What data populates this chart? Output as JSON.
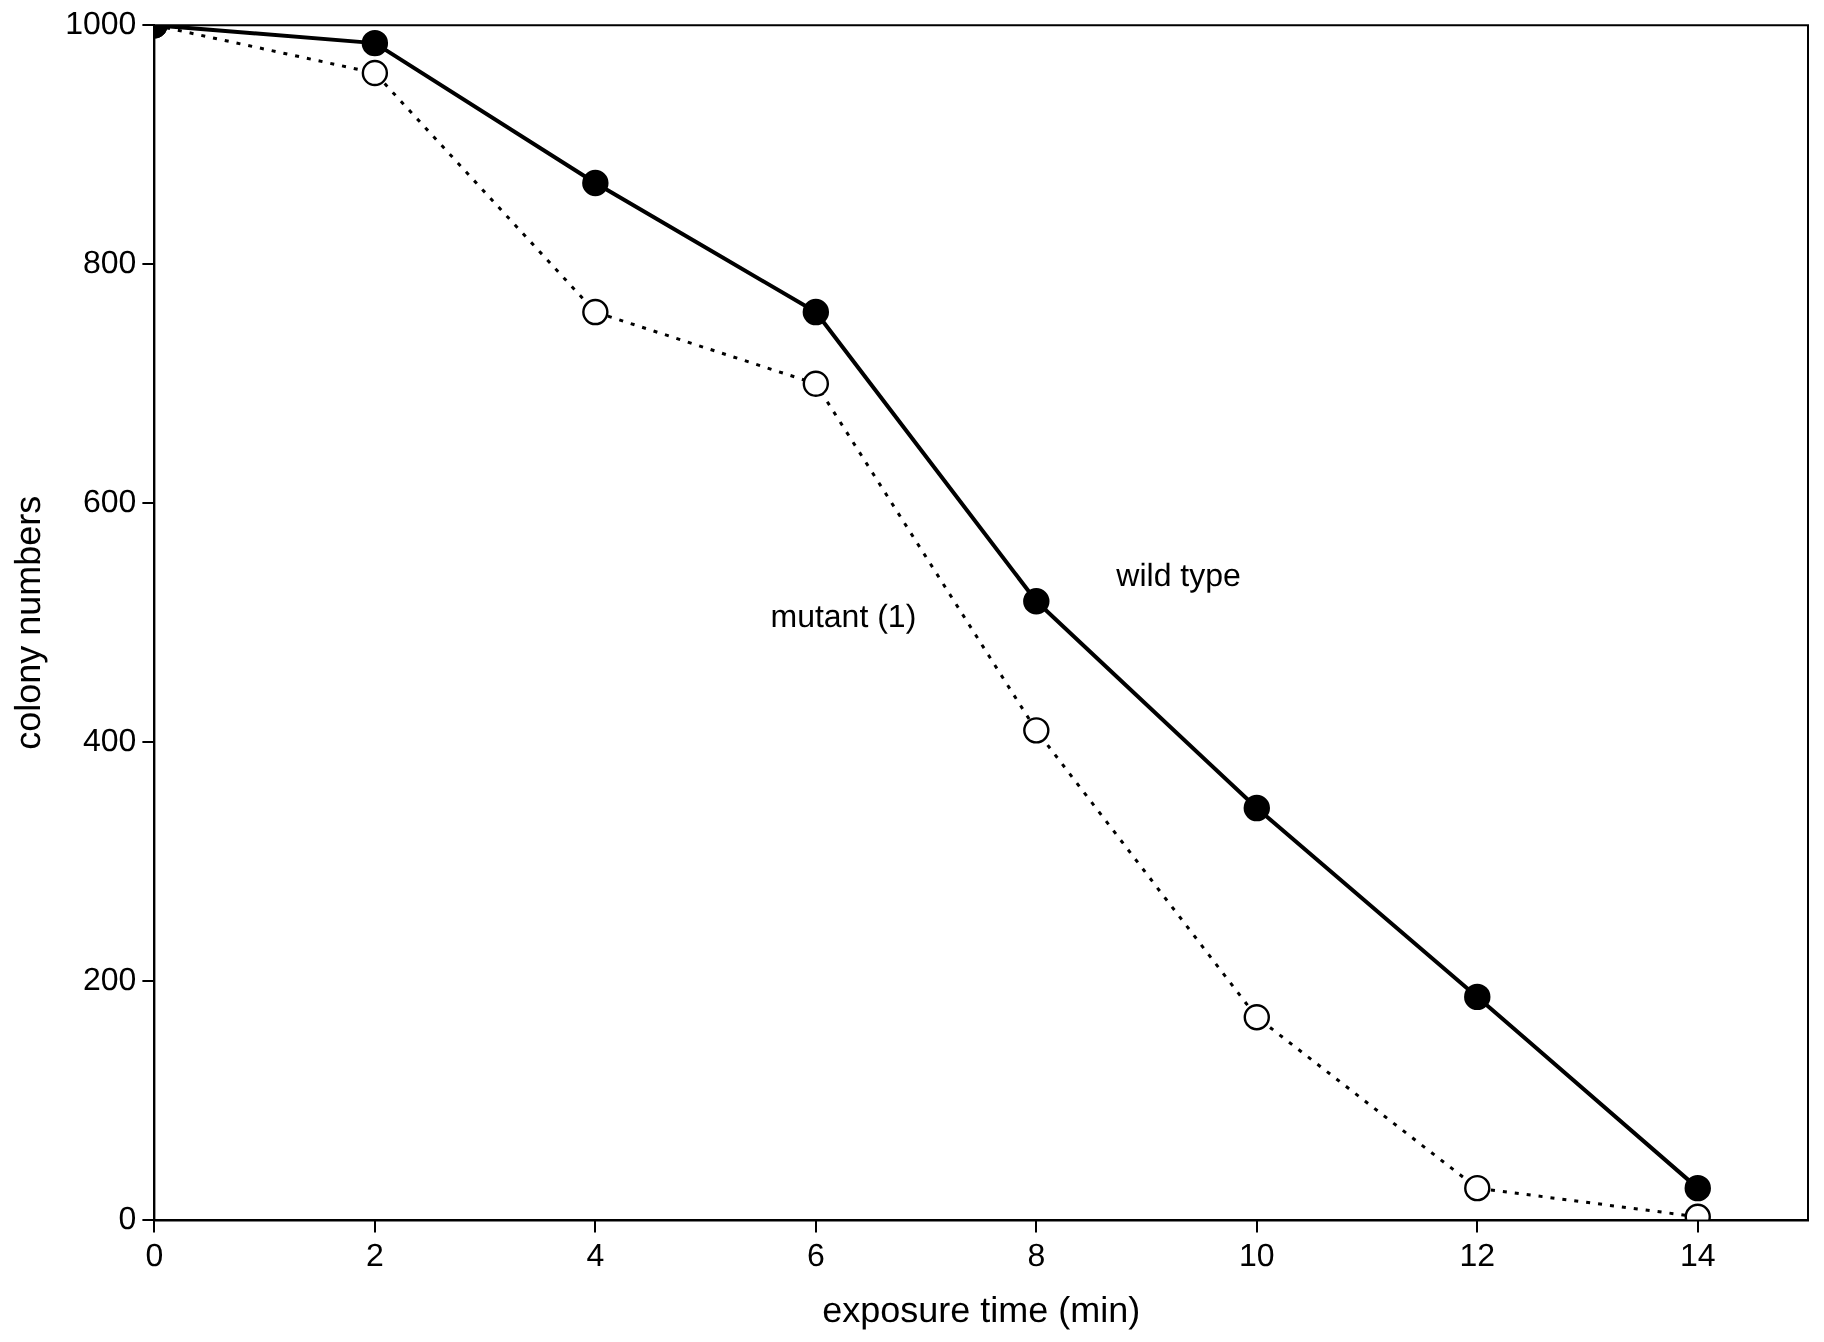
{
  "chart_data": {
    "type": "line",
    "xlabel": "exposure time (min)",
    "ylabel": "colony numbers",
    "x": [
      0,
      2,
      4,
      6,
      8,
      10,
      12,
      14
    ],
    "series": [
      {
        "name": "wild type",
        "color": "#000000",
        "values": [
          1000,
          985,
          868,
          760,
          518,
          345,
          187,
          27
        ],
        "marker": "circle",
        "line_style": "solid"
      },
      {
        "name": "mutant (1)",
        "color": "#000000",
        "values": [
          1000,
          960,
          760,
          700,
          410,
          170,
          27,
          3
        ],
        "marker": "circle",
        "line_style": "dotted"
      }
    ],
    "xlim": [
      0,
      15
    ],
    "ylim": [
      0,
      1000
    ],
    "xticks": [
      0,
      2,
      4,
      6,
      8,
      10,
      12,
      14
    ],
    "yticks": [
      0,
      200,
      400,
      600,
      800,
      1000
    ],
    "grid": false,
    "legend": false
  }
}
